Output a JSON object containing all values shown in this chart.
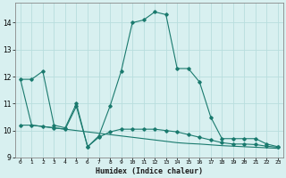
{
  "xlabel": "Humidex (Indice chaleur)",
  "x": [
    0,
    1,
    2,
    3,
    4,
    5,
    6,
    7,
    8,
    9,
    10,
    11,
    12,
    13,
    14,
    15,
    16,
    17,
    18,
    19,
    20,
    21,
    22,
    23
  ],
  "line1": [
    11.9,
    11.9,
    12.2,
    10.2,
    10.1,
    11.0,
    9.4,
    9.8,
    10.9,
    12.2,
    14.0,
    14.1,
    14.4,
    14.3,
    12.3,
    12.3,
    11.8,
    10.5,
    9.7,
    9.7,
    9.7,
    9.7,
    9.5,
    9.4
  ],
  "line2": [
    10.2,
    10.2,
    10.15,
    10.1,
    10.05,
    10.9,
    9.4,
    9.75,
    9.95,
    10.05,
    10.05,
    10.05,
    10.05,
    10.0,
    9.95,
    9.85,
    9.75,
    9.65,
    9.55,
    9.5,
    9.5,
    9.48,
    9.42,
    9.38
  ],
  "line3": [
    11.9,
    10.2,
    10.15,
    10.1,
    10.05,
    10.0,
    9.95,
    9.9,
    9.85,
    9.8,
    9.75,
    9.7,
    9.65,
    9.6,
    9.55,
    9.52,
    9.5,
    9.47,
    9.44,
    9.42,
    9.4,
    9.38,
    9.36,
    9.34
  ],
  "line_color": "#1a7a6e",
  "bg_color": "#d8f0f0",
  "grid_color": "#b8dede",
  "ylim": [
    9.0,
    14.75
  ],
  "yticks": [
    9,
    10,
    11,
    12,
    13,
    14
  ],
  "xlim": [
    -0.5,
    23.5
  ],
  "xtick_labels": [
    "0",
    "1",
    "2",
    "3",
    "4",
    "5",
    "6",
    "7",
    "8",
    "9",
    "10",
    "11",
    "12",
    "13",
    "14",
    "15",
    "16",
    "17",
    "18",
    "19",
    "20",
    "21",
    "22",
    "23"
  ]
}
